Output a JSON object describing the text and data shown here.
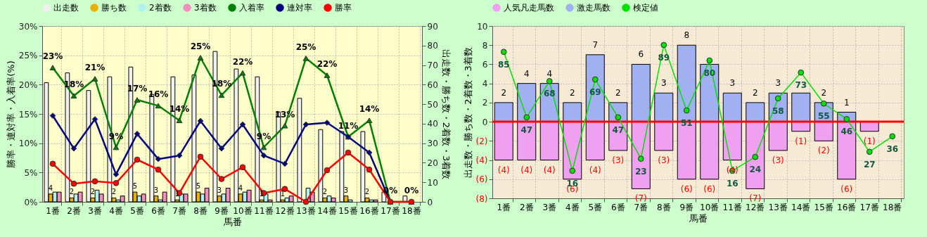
{
  "chart_data": [
    {
      "type": "bar",
      "xlabel": "馬番",
      "ylabel": "勝率・連対率・入着率(%)",
      "y2label": "出走数・勝ち数・2着数・3着数",
      "categories": [
        "1番",
        "2番",
        "3番",
        "4番",
        "5番",
        "6番",
        "7番",
        "8番",
        "9番",
        "10番",
        "11番",
        "12番",
        "13番",
        "14番",
        "15番",
        "16番",
        "17番",
        "18番"
      ],
      "ylim": [
        0,
        30
      ],
      "yticks": [
        {
          "value": 0,
          "label": "0%"
        },
        {
          "value": 5,
          "label": "5%"
        },
        {
          "value": 10,
          "label": "10%"
        },
        {
          "value": 15,
          "label": "15%"
        },
        {
          "value": 20,
          "label": "20%"
        },
        {
          "value": 25,
          "label": "25%"
        },
        {
          "value": 30,
          "label": "30%"
        }
      ],
      "y2lim": [
        0,
        90
      ],
      "y2ticks": [
        0,
        10,
        20,
        30,
        40,
        50,
        60,
        70,
        80,
        90
      ],
      "grid": true,
      "legend": "top",
      "series": [
        {
          "name": "出走数",
          "color": "#f0f0f0",
          "axis": "y2",
          "values": [
            61,
            66,
            57,
            64,
            69,
            55,
            64,
            65,
            77,
            68,
            64,
            46,
            53,
            37,
            36,
            36,
            5,
            3
          ]
        },
        {
          "name": "勝ち数",
          "color": "#e8b000",
          "axis": "y2",
          "values": [
            4,
            2,
            2,
            2,
            5,
            3,
            1,
            5,
            3,
            4,
            1,
            1,
            0,
            2,
            3,
            2,
            0,
            0
          ],
          "value_labels": [
            "4",
            "2",
            "2",
            "2",
            "5",
            "3",
            "1",
            "5",
            "3",
            "4",
            "1",
            "1",
            null,
            "2",
            "3",
            "2",
            null,
            null
          ]
        },
        {
          "name": "2着数",
          "color": "#b0f0f0",
          "axis": "y2",
          "values": [
            5,
            4,
            6,
            1,
            3,
            1,
            4,
            4,
            4,
            5,
            4,
            2,
            7,
            3,
            1,
            1,
            0,
            0
          ]
        },
        {
          "name": "3着数",
          "color": "#f090c0",
          "axis": "y2",
          "values": [
            5,
            5,
            4,
            3,
            4,
            5,
            4,
            7,
            7,
            6,
            1,
            3,
            5,
            2,
            0,
            1,
            0,
            0
          ]
        },
        {
          "name": "入着率",
          "type": "line",
          "color": "#008000",
          "marker": "triangle",
          "values": [
            22.9,
            18.1,
            21,
            9.3,
            17.4,
            16.4,
            13.9,
            24.6,
            18.2,
            22,
            9.3,
            13,
            24.5,
            21.6,
            11.1,
            13.9,
            0,
            0
          ],
          "value_labels": [
            "23%",
            "18%",
            "21%",
            "9%",
            "17%",
            "16%",
            "14%",
            "25%",
            "18%",
            "22%",
            "9%",
            "13%",
            "25%",
            "22%",
            "11%",
            "14%",
            "0%",
            "0%"
          ]
        },
        {
          "name": "連対率",
          "type": "line",
          "color": "#000080",
          "marker": "diamond",
          "values": [
            14.7,
            9.1,
            14.1,
            4.7,
            11.6,
            7.3,
            7.9,
            13.8,
            9.1,
            13.2,
            7.9,
            6.5,
            13.2,
            13.5,
            11.1,
            8.4,
            0,
            null
          ]
        },
        {
          "name": "勝率",
          "type": "line",
          "color": "#ff0000",
          "marker": "circle",
          "values": [
            6.5,
            3.1,
            3.5,
            3.2,
            7.2,
            5.5,
            1.5,
            7.7,
            3.9,
            5.9,
            1.5,
            2.2,
            0,
            5.4,
            8.4,
            5.5,
            0,
            0
          ]
        }
      ]
    },
    {
      "type": "bar",
      "stacked": true,
      "xlabel": "馬番",
      "ylabel": "出走数・勝ち数・2着数・3着数",
      "categories": [
        "1番",
        "2番",
        "3番",
        "4番",
        "5番",
        "6番",
        "7番",
        "8番",
        "9番",
        "10番",
        "11番",
        "12番",
        "13番",
        "14番",
        "15番",
        "16番",
        "17番",
        "18番"
      ],
      "ylim": [
        -8,
        10
      ],
      "yticks": [
        {
          "value": -8,
          "label": "(8)"
        },
        {
          "value": -6,
          "label": "(6)"
        },
        {
          "value": -4,
          "label": "(4)"
        },
        {
          "value": -2,
          "label": "(2)"
        },
        0,
        2,
        4,
        6,
        8,
        10
      ],
      "y2lim": [
        0,
        100
      ],
      "grid": true,
      "legend": "top",
      "ref_lines": [
        {
          "axis": "y",
          "value": 0,
          "color": "#ff0000"
        }
      ],
      "series": [
        {
          "name": "人気凡走馬数",
          "color": "#f0a0f0",
          "values": [
            -4,
            -4,
            -4,
            -6,
            -4,
            -3,
            -7,
            -3,
            -6,
            -6,
            -4,
            -7,
            -3,
            -1,
            -2,
            -6,
            -1,
            0
          ],
          "value_labels": [
            "(4)",
            "(4)",
            "(4)",
            "(6)",
            "(4)",
            "(3)",
            "(7)",
            "(3)",
            "(6)",
            "(6)",
            "(4)",
            "(7)",
            "(3)",
            "(1)",
            "(2)",
            "(6)",
            "(1)",
            null
          ]
        },
        {
          "name": "激走馬数",
          "color": "#a0b0f0",
          "values": [
            2,
            4,
            4,
            2,
            7,
            2,
            6,
            3,
            8,
            6,
            3,
            2,
            3,
            3,
            2,
            1,
            0,
            0
          ],
          "value_labels": [
            "2",
            "4",
            "4",
            "2",
            "7",
            "2",
            "6",
            "3",
            "8",
            null,
            "3",
            "2",
            "3",
            null,
            "2",
            "1",
            null,
            null
          ]
        },
        {
          "name": "検定値",
          "type": "line",
          "color": "#00e000",
          "marker": "circle",
          "axis": "y2",
          "values": [
            85,
            47,
            68,
            16,
            69,
            47,
            23,
            89,
            51,
            80,
            16,
            24,
            58,
            73,
            55,
            46,
            27,
            36
          ],
          "value_labels": [
            "85",
            "47",
            "68",
            "16",
            "69",
            "47",
            "23",
            "89",
            "51",
            "80",
            "16",
            "24",
            "58",
            "73",
            "55",
            "46",
            "27",
            "36"
          ]
        }
      ]
    }
  ]
}
